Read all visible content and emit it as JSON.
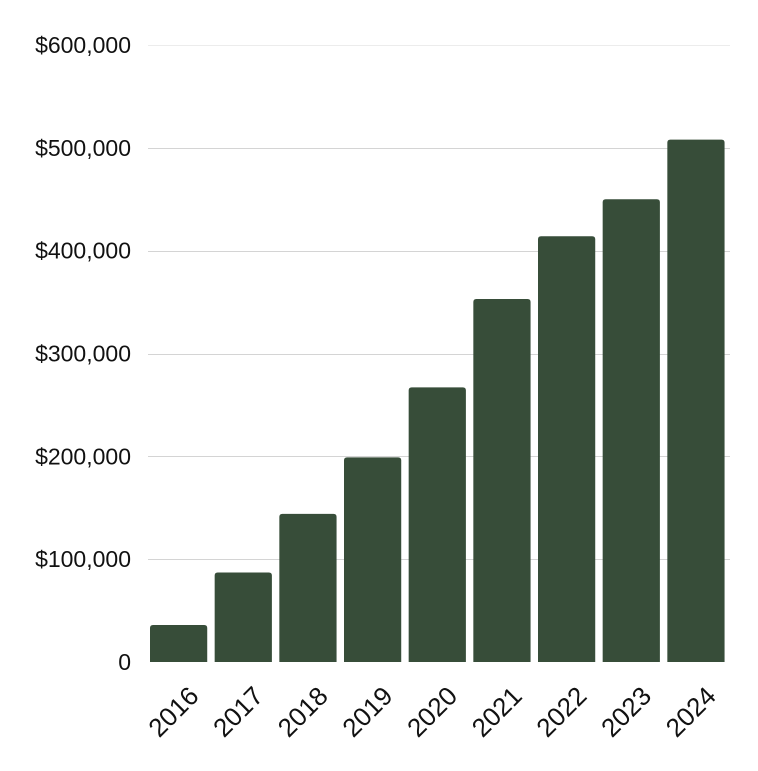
{
  "chart_data": {
    "type": "bar",
    "categories": [
      "2016",
      "2017",
      "2018",
      "2019",
      "2020",
      "2021",
      "2022",
      "2023",
      "2024"
    ],
    "values": [
      36000,
      87000,
      144000,
      199000,
      267000,
      353000,
      414000,
      450000,
      508000
    ],
    "ylim": [
      0,
      600000
    ],
    "yticks": [
      0,
      100000,
      200000,
      300000,
      400000,
      500000,
      600000
    ],
    "ytick_labels": [
      "0",
      "$100,000",
      "$200,000",
      "$300,000",
      "$400,000",
      "$500,000",
      "$600,000"
    ],
    "grid": true,
    "bar_color": "#374d39",
    "title": "",
    "xlabel": "",
    "ylabel": ""
  }
}
